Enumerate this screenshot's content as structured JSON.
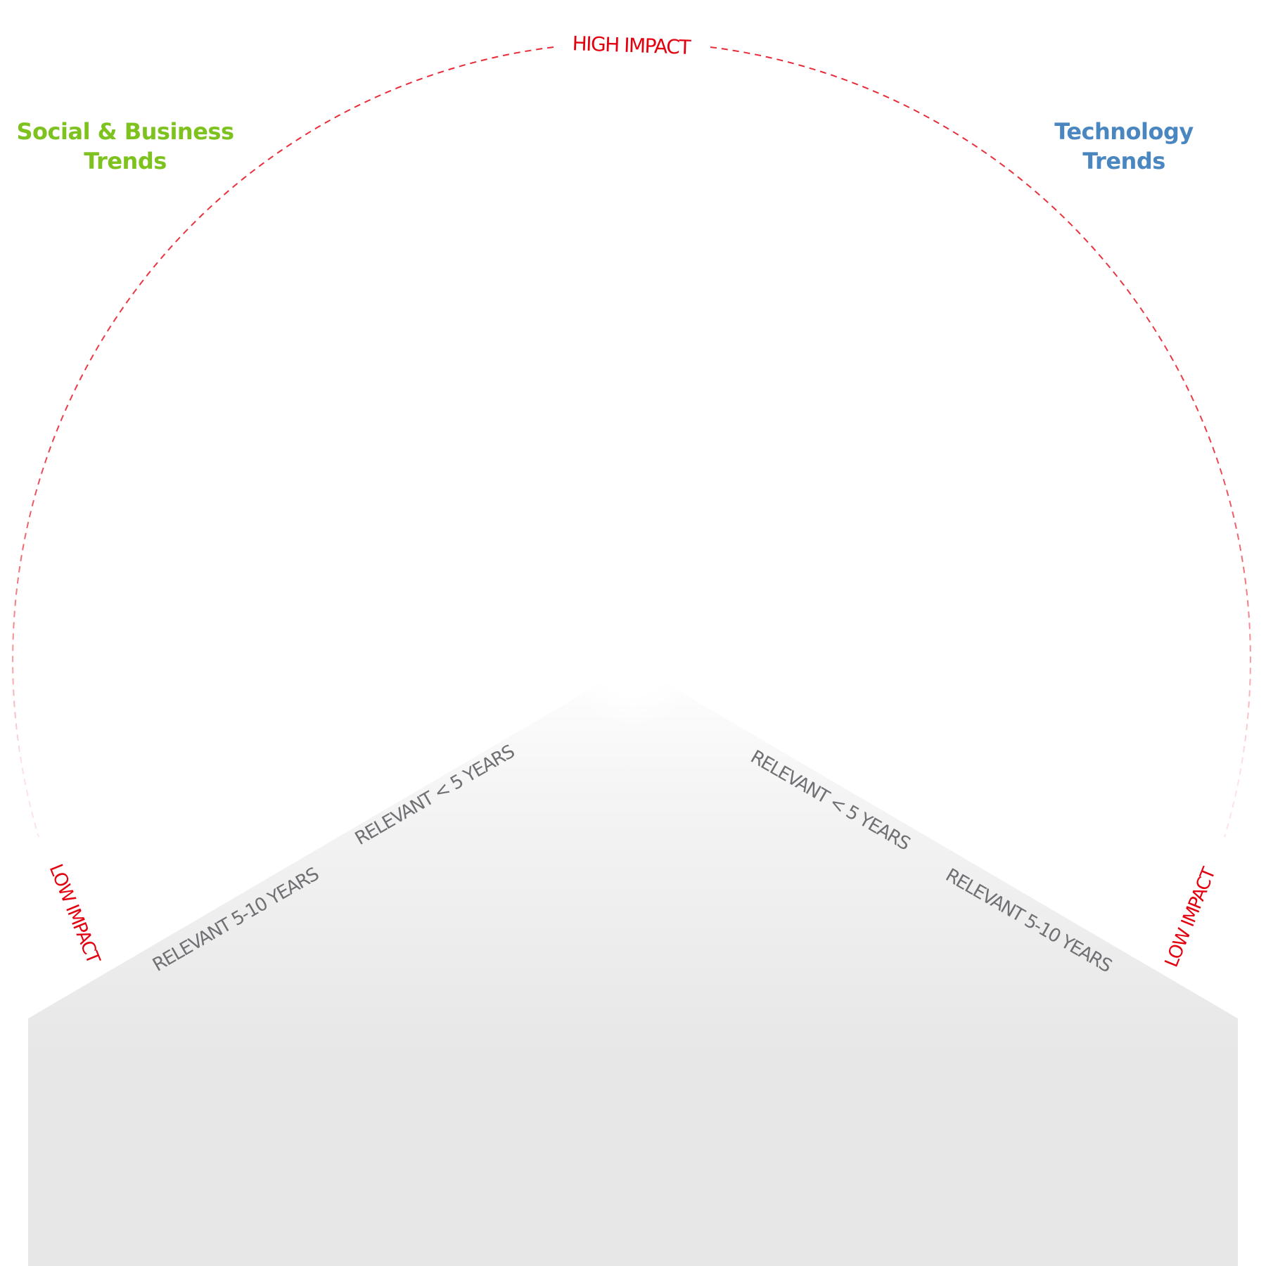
{
  "colors": {
    "impact_red": "#e3000f",
    "social_green": "#7dc21e",
    "tech_blue": "#4a87c0",
    "axis_label_gray": "#707074",
    "sector_gray": "#e7e7e8"
  },
  "categories": {
    "social": {
      "line1": "Social & Business",
      "line2": "Trends"
    },
    "technology": {
      "line1": "Technology",
      "line2": "Trends"
    }
  },
  "impact_labels": {
    "high": "HIGH IMPACT",
    "low_left": "LOW IMPACT",
    "low_right": "LOW IMPACT"
  },
  "relevance_labels": {
    "left_inner": "RELEVANT < 5 YEARS",
    "left_outer": "RELEVANT 5-10 YEARS",
    "right_inner": "RELEVANT < 5 YEARS",
    "right_outer": "RELEVANT 5-10 YEARS"
  }
}
